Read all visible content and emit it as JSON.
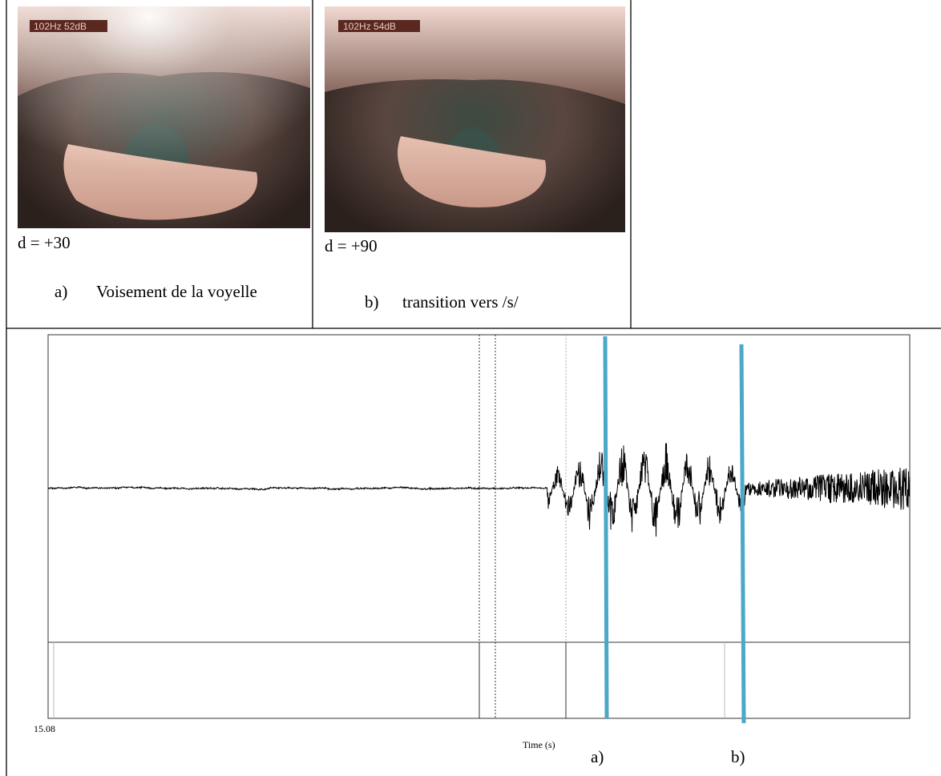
{
  "images": [
    {
      "overlay": "102Hz  52dB",
      "caption": "d = +30",
      "item": {
        "marker": "a)",
        "text": "Voisement de la voyelle"
      }
    },
    {
      "overlay": "102Hz  54dB",
      "caption": "d = +90",
      "item": {
        "marker": "b)",
        "text": "transition vers /s/"
      }
    }
  ],
  "signal": {
    "start_time": "15.08",
    "axis_label": "Time (s)",
    "markers": [
      "a)",
      "b)"
    ]
  }
}
